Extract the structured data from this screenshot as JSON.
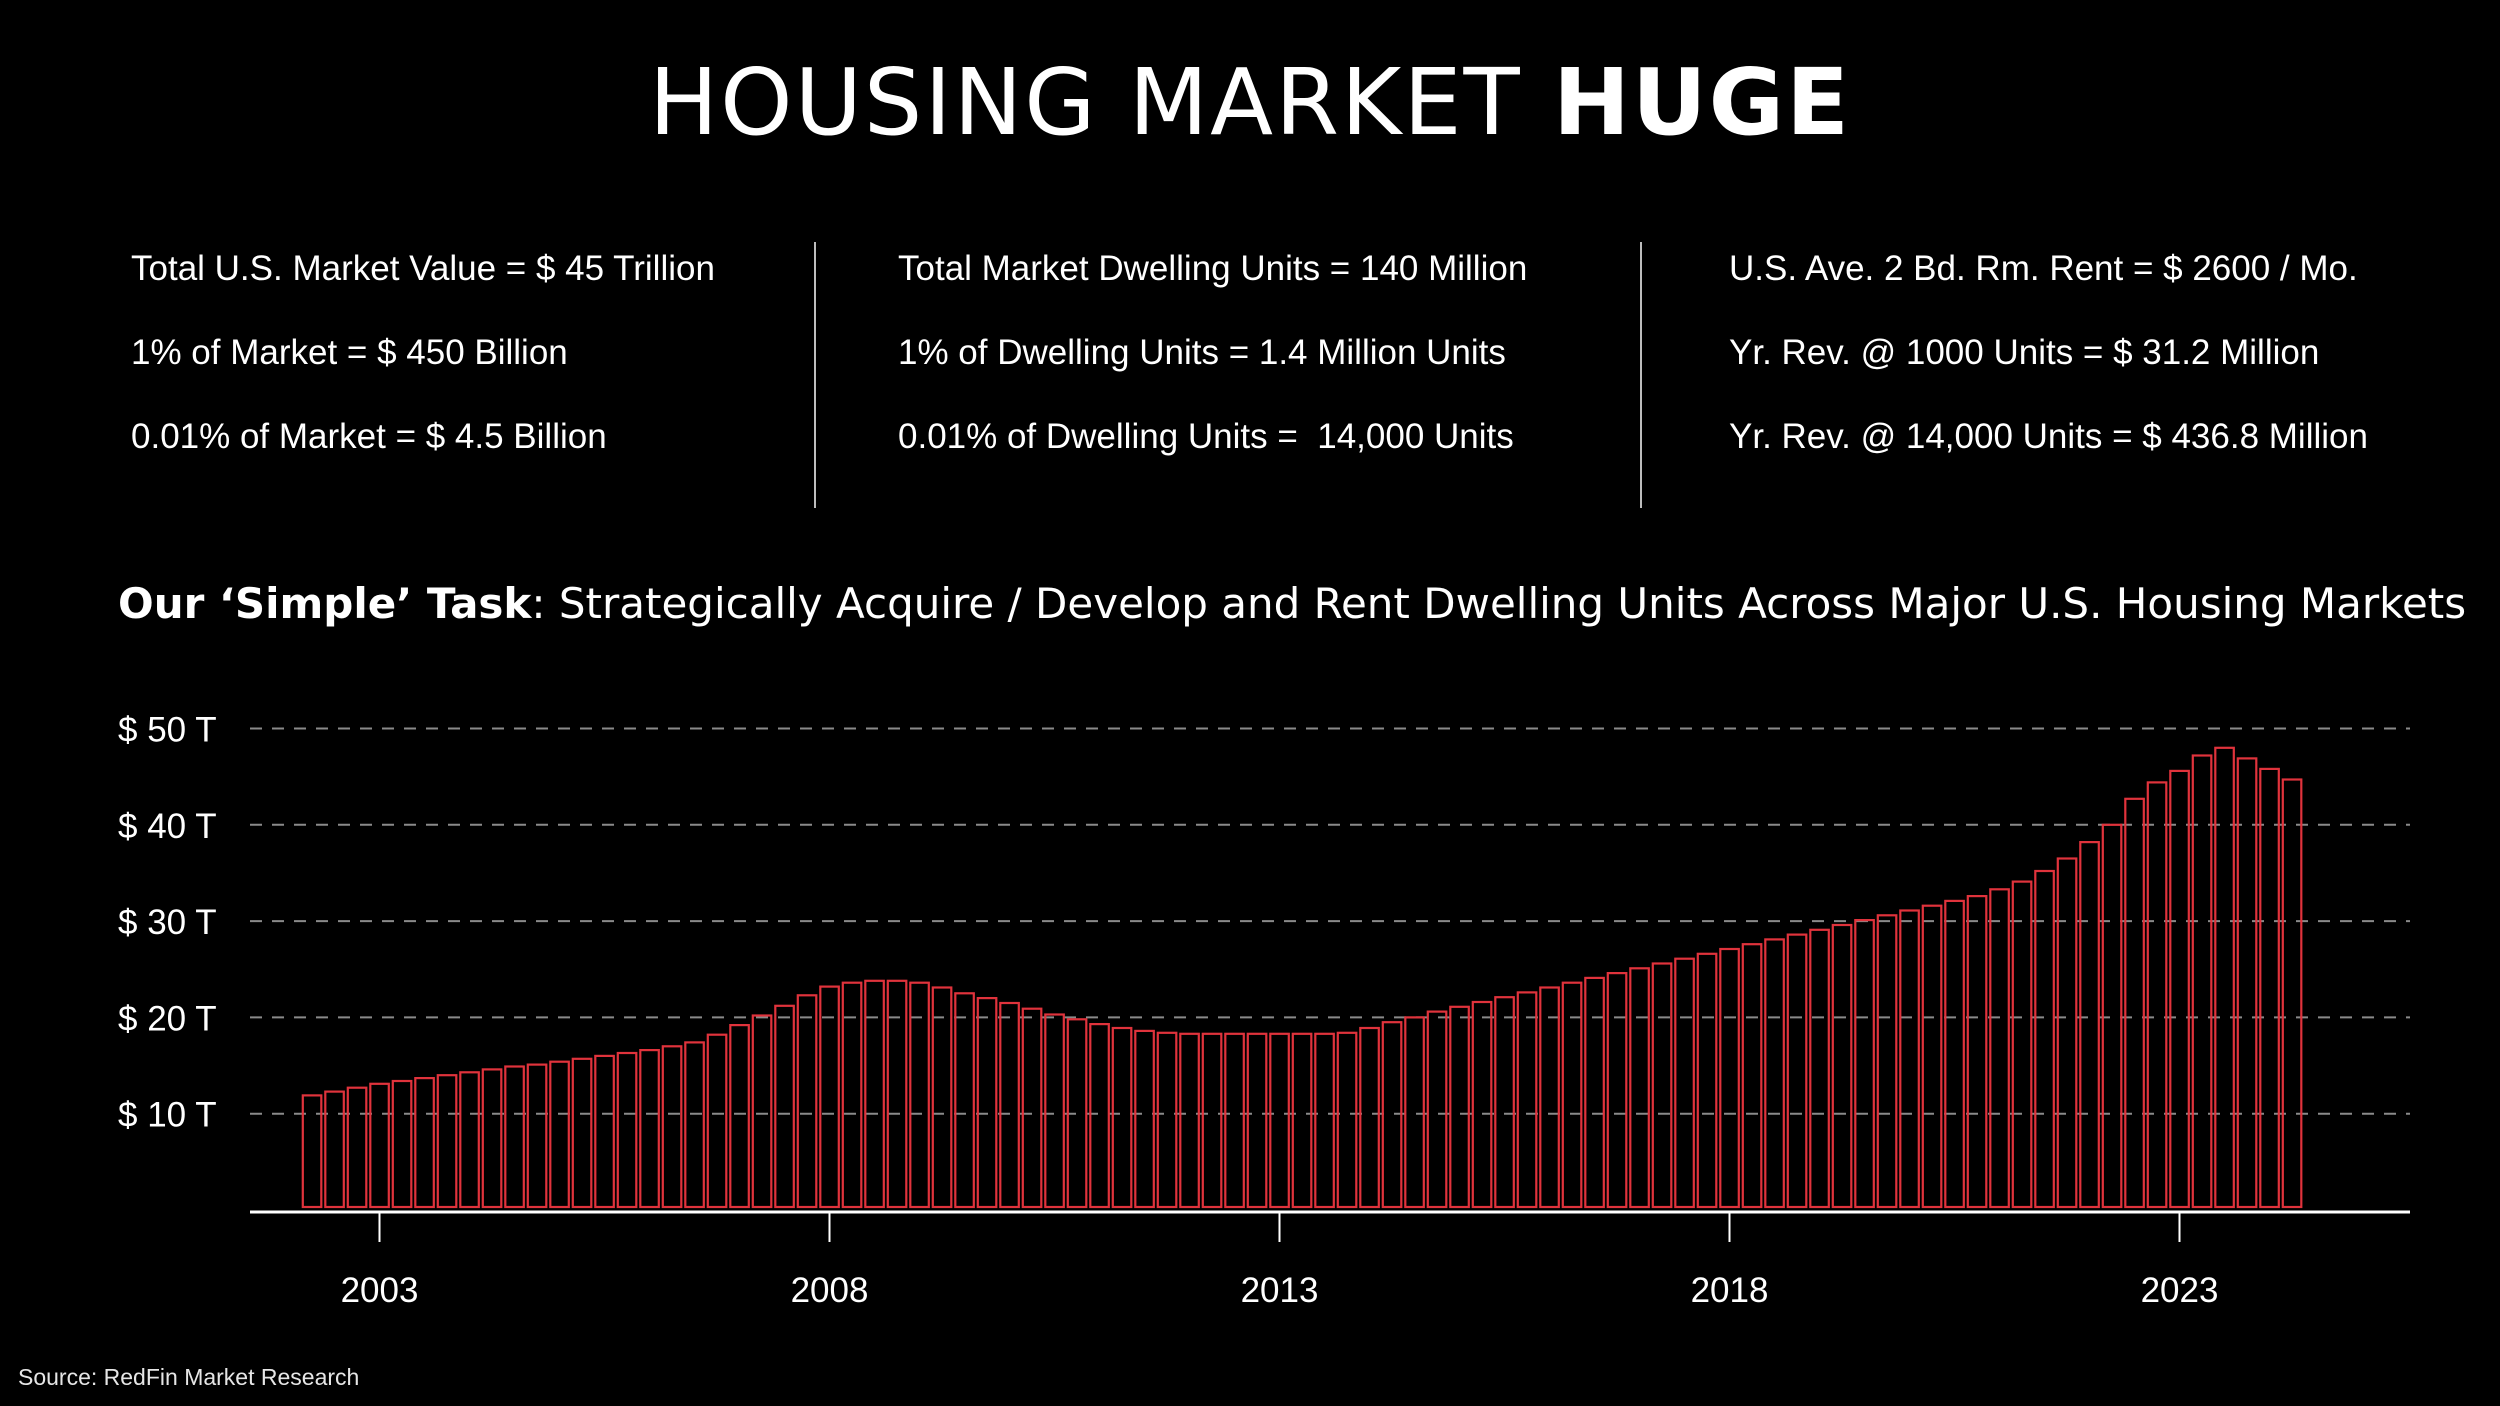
{
  "header": {
    "title_thin": "HOUSING MARKET",
    "title_bold": "HUGE"
  },
  "stats": {
    "col1": [
      "Total U.S. Market Value = $ 45 Trillion",
      "1% of Market = $ 450 Billion",
      "0.01% of Market = $ 4.5 Billion"
    ],
    "col2": [
      "Total Market Dwelling Units = 140 Million",
      "1% of Dwelling Units = 1.4 Million Units",
      "0.01% of Dwelling Units =  14,000 Units"
    ],
    "col3": [
      "U.S. Ave. 2 Bd. Rm. Rent = $ 2600 / Mo.",
      "Yr. Rev. @ 1000 Units = $ 31.2 Million",
      "Yr. Rev. @ 14,000 Units = $ 436.8 Million"
    ]
  },
  "task": {
    "bold": "Our ‘Simple’ Task",
    "rest": ": Strategically Acquire / Develop and Rent Dwelling Units Across Major U.S. Housing Markets"
  },
  "source": "Source: RedFin Market Research",
  "colors": {
    "bar_outline": "#e0333c",
    "background": "#000000",
    "grid": "#8a8a8a",
    "text": "#ffffff"
  },
  "chart_data": {
    "type": "bar",
    "title": "",
    "xlabel": "",
    "ylabel": "",
    "grid": true,
    "legend": "none",
    "ylim": [
      0,
      55
    ],
    "y_ticks": [
      10,
      20,
      30,
      40,
      50
    ],
    "y_tick_labels": [
      "$ 10 T",
      "$ 20 T",
      "$ 30 T",
      "$ 40 T",
      "$ 50 T"
    ],
    "x_start": 2002.25,
    "x_step": 0.25,
    "x_ticks": [
      2003,
      2008,
      2013,
      2018,
      2023
    ],
    "x_tick_labels": [
      "2003",
      "2008",
      "2013",
      "2018",
      "2023"
    ],
    "xlim": [
      2001.5,
      2025.5
    ],
    "values": [
      11.9,
      12.3,
      12.7,
      13.1,
      13.4,
      13.7,
      14.0,
      14.3,
      14.6,
      14.9,
      15.1,
      15.4,
      15.7,
      16.0,
      16.3,
      16.6,
      17.0,
      17.4,
      18.2,
      19.2,
      20.2,
      21.2,
      22.3,
      23.2,
      23.6,
      23.8,
      23.8,
      23.6,
      23.1,
      22.5,
      22.0,
      21.5,
      20.9,
      20.3,
      19.8,
      19.3,
      18.9,
      18.6,
      18.4,
      18.3,
      18.3,
      18.3,
      18.3,
      18.3,
      18.3,
      18.3,
      18.4,
      18.9,
      19.5,
      20.0,
      20.6,
      21.1,
      21.6,
      22.1,
      22.6,
      23.1,
      23.6,
      24.1,
      24.6,
      25.1,
      25.6,
      26.1,
      26.6,
      27.1,
      27.6,
      28.1,
      28.6,
      29.1,
      29.6,
      30.1,
      30.6,
      31.1,
      31.6,
      32.1,
      32.6,
      33.3,
      34.1,
      35.2,
      36.5,
      38.2,
      40.0,
      42.7,
      44.4,
      45.6,
      47.2,
      48.0,
      46.9,
      45.8,
      44.7
    ]
  }
}
